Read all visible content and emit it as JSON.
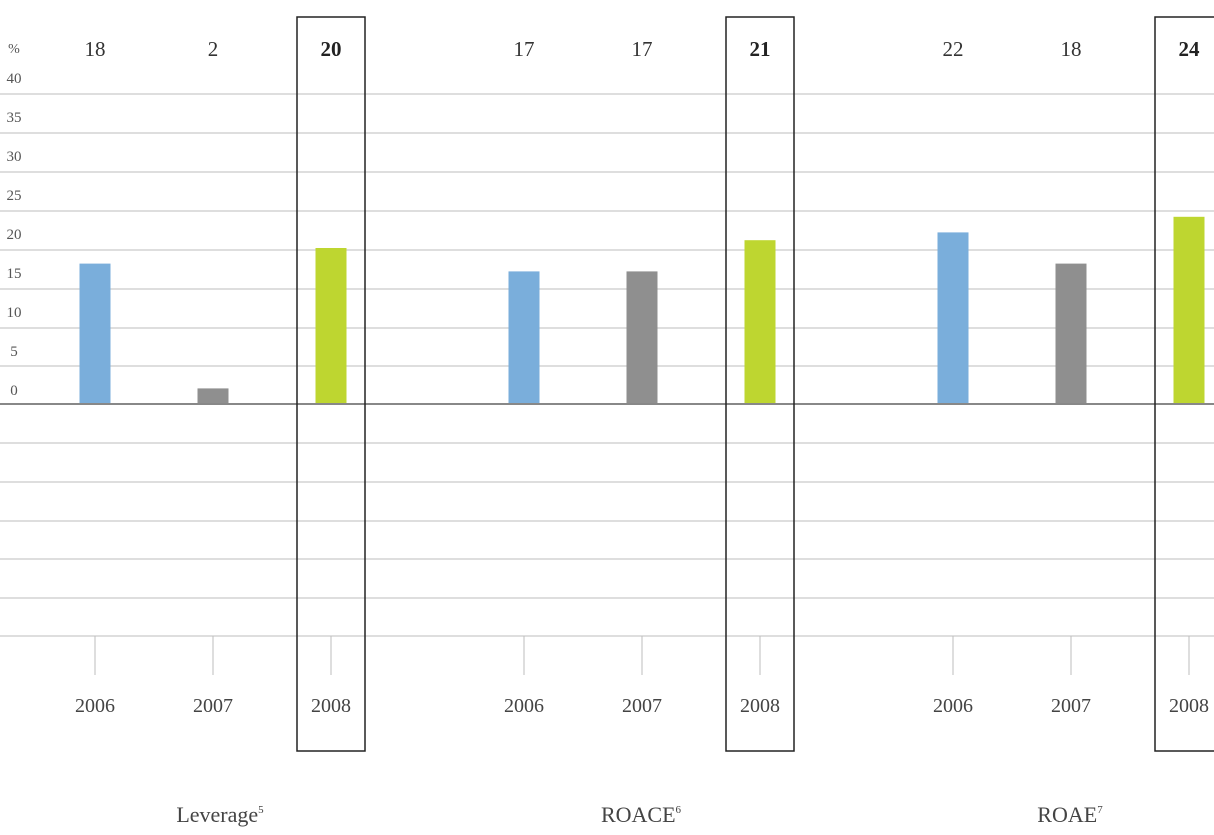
{
  "chart_data": {
    "type": "bar",
    "y_unit": "%",
    "y_ticks": [
      "40",
      "35",
      "30",
      "25",
      "20",
      "15",
      "10",
      "5",
      "0"
    ],
    "ylim": [
      0,
      40
    ],
    "grid": true,
    "groups": [
      {
        "name": "Leverage",
        "superscript": "5",
        "categories": [
          "2006",
          "2007",
          "2008"
        ],
        "values": [
          18,
          2,
          20
        ],
        "value_labels": [
          "18",
          "2",
          "20"
        ],
        "highlight_index": 2
      },
      {
        "name": "ROACE",
        "superscript": "6",
        "categories": [
          "2006",
          "2007",
          "2008"
        ],
        "values": [
          17,
          17,
          21
        ],
        "value_labels": [
          "17",
          "17",
          "21"
        ],
        "highlight_index": 2
      },
      {
        "name": "ROAE",
        "superscript": "7",
        "categories": [
          "2006",
          "2007",
          "2008"
        ],
        "values": [
          22,
          18,
          24
        ],
        "value_labels": [
          "22",
          "18",
          "24"
        ],
        "highlight_index": 2
      }
    ],
    "colors": {
      "2006": "#7aaedb",
      "2007": "#8f8f8f",
      "2008": "#bed630",
      "grid": "#bdbdbd",
      "axis": "#888888",
      "highlight_box": "#222222"
    }
  }
}
